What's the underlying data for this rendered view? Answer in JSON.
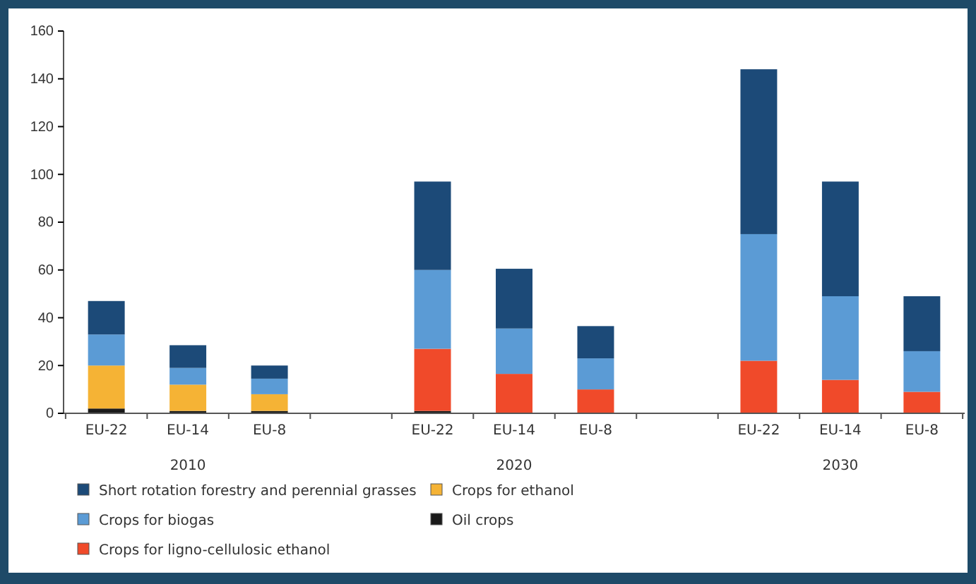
{
  "chart_data": {
    "type": "bar",
    "stacked": true,
    "categories": [
      "EU-22",
      "EU-14",
      "EU-8",
      null,
      "EU-22",
      "EU-14",
      "EU-8",
      null,
      "EU-22",
      "EU-14",
      "EU-8"
    ],
    "series": [
      {
        "name": "Oil crops",
        "color": "#1a1a1a",
        "values": [
          2,
          1,
          1,
          null,
          1,
          null,
          null,
          null,
          0,
          0,
          0
        ]
      },
      {
        "name": "Crops for ethanol",
        "color": "#f5b335",
        "values": [
          18,
          11,
          7,
          null,
          0,
          0,
          0,
          null,
          0,
          0,
          0
        ]
      },
      {
        "name": "Crops for ligno-cellulosic ethanol",
        "color": "#f04a2a",
        "values": [
          0,
          0,
          0,
          null,
          26,
          16.5,
          10,
          null,
          22,
          14,
          9
        ]
      },
      {
        "name": "Crops for biogas",
        "color": "#5b9bd5",
        "values": [
          13,
          7,
          6.5,
          null,
          33,
          19,
          13,
          null,
          53,
          35,
          17
        ]
      },
      {
        "name": "Short rotation forestry and perennial grasses",
        "color": "#1c4a78",
        "values": [
          14,
          9.5,
          5.5,
          null,
          37,
          25,
          13.5,
          null,
          69,
          48,
          23
        ]
      }
    ],
    "annotations": [
      "2010",
      "2020",
      "2030"
    ],
    "ylim": [
      0,
      160
    ],
    "yticks": [
      0,
      20,
      40,
      60,
      80,
      100,
      120,
      140,
      160
    ],
    "grid": false,
    "legend": "bottom"
  }
}
